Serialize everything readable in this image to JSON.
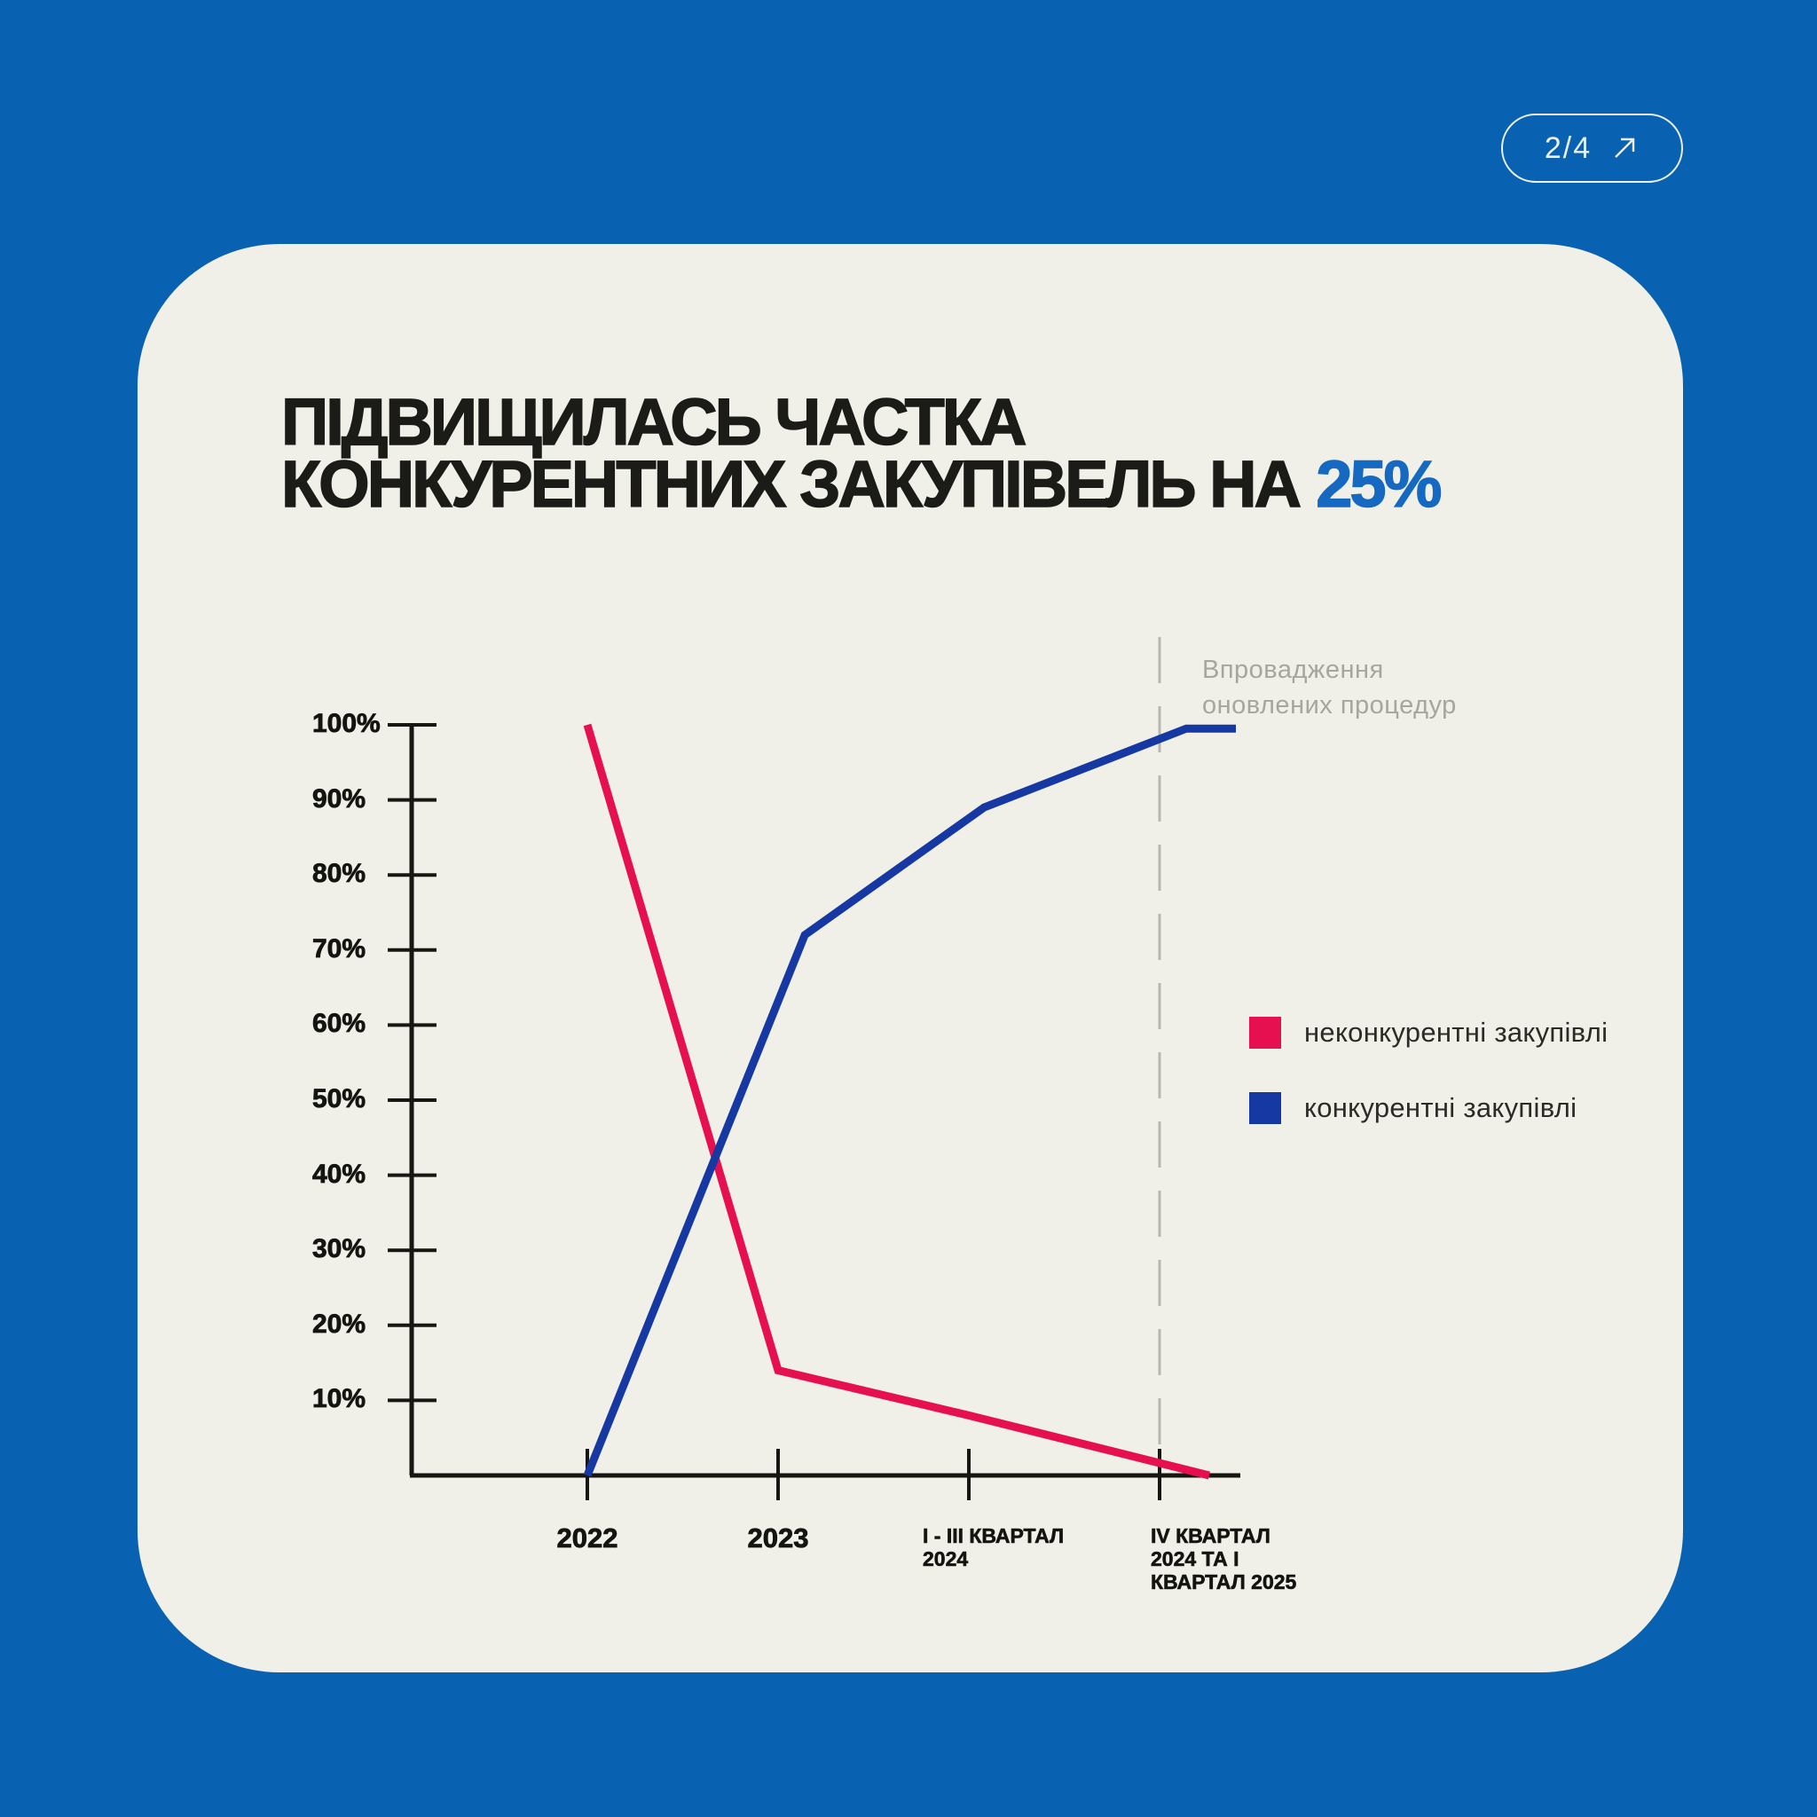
{
  "colors": {
    "background": "#0862b1",
    "card_background": "#f0efe8",
    "axis": "#161613",
    "dashed_event_line": "#b7b7b0",
    "title_text": "#1b1b18",
    "title_highlight": "#1569c1",
    "annotation_text": "#a6a69f"
  },
  "pagination": {
    "label": "2/4",
    "icon": "arrow-up-right"
  },
  "title": {
    "line1": "ПІДВИЩИЛАСЬ ЧАСТКА",
    "line2_prefix": "КОНКУРЕНТНИХ ЗАКУПІВЕЛЬ НА",
    "highlight": "25%"
  },
  "annotation": {
    "line1": "Впровадження",
    "line2": "оновлених процедур"
  },
  "legend": {
    "items": [
      {
        "label": "неконкурентні закупівлі",
        "color": "#e60f4f"
      },
      {
        "label": "конкурентні закупівлі",
        "color": "#1638a3"
      }
    ]
  },
  "chart_data": {
    "type": "line",
    "title": "ПІДВИЩИЛАСЬ ЧАСТКА КОНКУРЕНТНИХ ЗАКУПІВЕЛЬ НА 25%",
    "categories": [
      "2022",
      "2023",
      "І - ІІІ КВАРТАЛ 2024",
      "IV КВАРТАЛ 2024 ТА І КВАРТАЛ 2025"
    ],
    "ylim": [
      0,
      100
    ],
    "y_ticks": [
      "100%",
      "90%",
      "80%",
      "70%",
      "60%",
      "50%",
      "40%",
      "30%",
      "20%",
      "10%"
    ],
    "grid": false,
    "legend_position": "right",
    "series": [
      {
        "name": "неконкурентні закупівлі",
        "color": "#e60f4f",
        "values": [
          100,
          14,
          8,
          0
        ],
        "points": [
          [
            0,
            100
          ],
          [
            1,
            14
          ],
          [
            2,
            8
          ],
          [
            3.26,
            0
          ]
        ]
      },
      {
        "name": "конкурентні закупівлі",
        "color": "#1638a3",
        "values": [
          0,
          72,
          89,
          99
        ],
        "points": [
          [
            0,
            0
          ],
          [
            1.14,
            72
          ],
          [
            2.08,
            89
          ],
          [
            3.14,
            99.5
          ],
          [
            3.4,
            99.5
          ]
        ]
      }
    ],
    "event_line": {
      "category_index": 3,
      "label": "Впровадження оновлених процедур"
    },
    "x_labels": [
      {
        "lines": [
          "2022"
        ],
        "style": "year",
        "align": "center"
      },
      {
        "lines": [
          "2023"
        ],
        "style": "year",
        "align": "center"
      },
      {
        "lines": [
          "І - ІІІ КВАРТАЛ",
          "2024"
        ],
        "style": "quarter",
        "dx": -52
      },
      {
        "lines": [
          "IV КВАРТАЛ",
          "2024 ТА І",
          "КВАРТАЛ 2025"
        ],
        "style": "quarter",
        "dx": -10
      }
    ]
  }
}
